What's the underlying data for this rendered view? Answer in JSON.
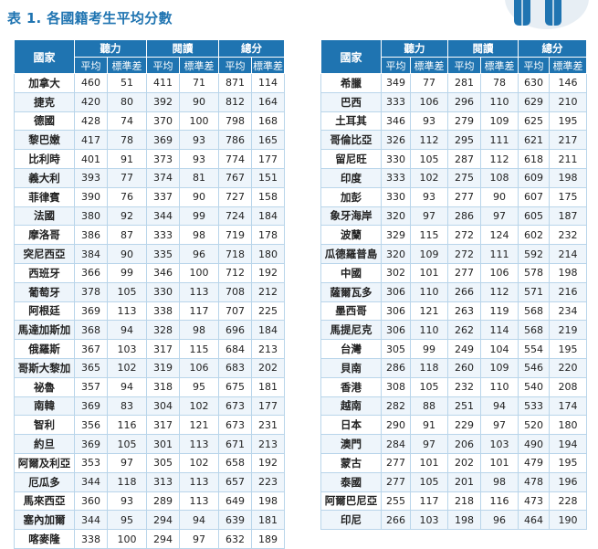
{
  "title": "表 1. 各國籍考生平均分數",
  "headers": {
    "country": "國家",
    "listening": "聽力",
    "reading": "閱讀",
    "total": "總分",
    "mean": "平均",
    "sd": "標準差"
  },
  "left_rows": [
    {
      "country": "加拿大",
      "l_mean": "460",
      "l_sd": "51",
      "r_mean": "411",
      "r_sd": "71",
      "t_mean": "871",
      "t_sd": "114"
    },
    {
      "country": "捷克",
      "l_mean": "420",
      "l_sd": "80",
      "r_mean": "392",
      "r_sd": "90",
      "t_mean": "812",
      "t_sd": "164"
    },
    {
      "country": "德國",
      "l_mean": "428",
      "l_sd": "74",
      "r_mean": "370",
      "r_sd": "100",
      "t_mean": "798",
      "t_sd": "168"
    },
    {
      "country": "黎巴嫩",
      "l_mean": "417",
      "l_sd": "78",
      "r_mean": "369",
      "r_sd": "93",
      "t_mean": "786",
      "t_sd": "165"
    },
    {
      "country": "比利時",
      "l_mean": "401",
      "l_sd": "91",
      "r_mean": "373",
      "r_sd": "93",
      "t_mean": "774",
      "t_sd": "177"
    },
    {
      "country": "義大利",
      "l_mean": "393",
      "l_sd": "77",
      "r_mean": "374",
      "r_sd": "81",
      "t_mean": "767",
      "t_sd": "151"
    },
    {
      "country": "菲律賓",
      "l_mean": "390",
      "l_sd": "76",
      "r_mean": "337",
      "r_sd": "90",
      "t_mean": "727",
      "t_sd": "158"
    },
    {
      "country": "法國",
      "l_mean": "380",
      "l_sd": "92",
      "r_mean": "344",
      "r_sd": "99",
      "t_mean": "724",
      "t_sd": "184"
    },
    {
      "country": "摩洛哥",
      "l_mean": "386",
      "l_sd": "87",
      "r_mean": "333",
      "r_sd": "98",
      "t_mean": "719",
      "t_sd": "178"
    },
    {
      "country": "突尼西亞",
      "l_mean": "384",
      "l_sd": "90",
      "r_mean": "335",
      "r_sd": "96",
      "t_mean": "718",
      "t_sd": "180"
    },
    {
      "country": "西班牙",
      "l_mean": "366",
      "l_sd": "99",
      "r_mean": "346",
      "r_sd": "100",
      "t_mean": "712",
      "t_sd": "192"
    },
    {
      "country": "葡萄牙",
      "l_mean": "378",
      "l_sd": "105",
      "r_mean": "330",
      "r_sd": "113",
      "t_mean": "708",
      "t_sd": "212"
    },
    {
      "country": "阿根廷",
      "l_mean": "369",
      "l_sd": "113",
      "r_mean": "338",
      "r_sd": "117",
      "t_mean": "707",
      "t_sd": "225"
    },
    {
      "country": "馬達加斯加",
      "l_mean": "368",
      "l_sd": "94",
      "r_mean": "328",
      "r_sd": "98",
      "t_mean": "696",
      "t_sd": "184"
    },
    {
      "country": "俄羅斯",
      "l_mean": "367",
      "l_sd": "103",
      "r_mean": "317",
      "r_sd": "115",
      "t_mean": "684",
      "t_sd": "213"
    },
    {
      "country": "哥斯大黎加",
      "l_mean": "365",
      "l_sd": "102",
      "r_mean": "319",
      "r_sd": "106",
      "t_mean": "683",
      "t_sd": "202"
    },
    {
      "country": "祕魯",
      "l_mean": "357",
      "l_sd": "94",
      "r_mean": "318",
      "r_sd": "95",
      "t_mean": "675",
      "t_sd": "181"
    },
    {
      "country": "南韓",
      "l_mean": "369",
      "l_sd": "83",
      "r_mean": "304",
      "r_sd": "102",
      "t_mean": "673",
      "t_sd": "177"
    },
    {
      "country": "智利",
      "l_mean": "356",
      "l_sd": "116",
      "r_mean": "317",
      "r_sd": "121",
      "t_mean": "673",
      "t_sd": "231"
    },
    {
      "country": "約旦",
      "l_mean": "369",
      "l_sd": "105",
      "r_mean": "301",
      "r_sd": "113",
      "t_mean": "671",
      "t_sd": "213"
    },
    {
      "country": "阿爾及利亞",
      "l_mean": "353",
      "l_sd": "97",
      "r_mean": "305",
      "r_sd": "102",
      "t_mean": "658",
      "t_sd": "192"
    },
    {
      "country": "厄瓜多",
      "l_mean": "344",
      "l_sd": "118",
      "r_mean": "313",
      "r_sd": "113",
      "t_mean": "657",
      "t_sd": "223"
    },
    {
      "country": "馬來西亞",
      "l_mean": "360",
      "l_sd": "93",
      "r_mean": "289",
      "r_sd": "113",
      "t_mean": "649",
      "t_sd": "198"
    },
    {
      "country": "塞內加爾",
      "l_mean": "344",
      "l_sd": "95",
      "r_mean": "294",
      "r_sd": "94",
      "t_mean": "639",
      "t_sd": "181"
    },
    {
      "country": "喀麥隆",
      "l_mean": "338",
      "l_sd": "100",
      "r_mean": "294",
      "r_sd": "97",
      "t_mean": "632",
      "t_sd": "189"
    }
  ],
  "right_rows": [
    {
      "country": "希臘",
      "l_mean": "349",
      "l_sd": "77",
      "r_mean": "281",
      "r_sd": "78",
      "t_mean": "630",
      "t_sd": "146"
    },
    {
      "country": "巴西",
      "l_mean": "333",
      "l_sd": "106",
      "r_mean": "296",
      "r_sd": "110",
      "t_mean": "629",
      "t_sd": "210"
    },
    {
      "country": "土耳其",
      "l_mean": "346",
      "l_sd": "93",
      "r_mean": "279",
      "r_sd": "109",
      "t_mean": "625",
      "t_sd": "195"
    },
    {
      "country": "哥倫比亞",
      "l_mean": "326",
      "l_sd": "112",
      "r_mean": "295",
      "r_sd": "111",
      "t_mean": "621",
      "t_sd": "217"
    },
    {
      "country": "留尼旺",
      "l_mean": "330",
      "l_sd": "105",
      "r_mean": "287",
      "r_sd": "112",
      "t_mean": "618",
      "t_sd": "211"
    },
    {
      "country": "印度",
      "l_mean": "333",
      "l_sd": "102",
      "r_mean": "275",
      "r_sd": "108",
      "t_mean": "609",
      "t_sd": "198"
    },
    {
      "country": "加彭",
      "l_mean": "330",
      "l_sd": "93",
      "r_mean": "277",
      "r_sd": "90",
      "t_mean": "607",
      "t_sd": "175"
    },
    {
      "country": "象牙海岸",
      "l_mean": "320",
      "l_sd": "97",
      "r_mean": "286",
      "r_sd": "97",
      "t_mean": "605",
      "t_sd": "187"
    },
    {
      "country": "波蘭",
      "l_mean": "329",
      "l_sd": "115",
      "r_mean": "272",
      "r_sd": "124",
      "t_mean": "602",
      "t_sd": "232"
    },
    {
      "country": "瓜德羅普島",
      "l_mean": "320",
      "l_sd": "109",
      "r_mean": "272",
      "r_sd": "111",
      "t_mean": "592",
      "t_sd": "214"
    },
    {
      "country": "中國",
      "l_mean": "302",
      "l_sd": "101",
      "r_mean": "277",
      "r_sd": "106",
      "t_mean": "578",
      "t_sd": "198"
    },
    {
      "country": "薩爾瓦多",
      "l_mean": "306",
      "l_sd": "110",
      "r_mean": "266",
      "r_sd": "112",
      "t_mean": "571",
      "t_sd": "216"
    },
    {
      "country": "墨西哥",
      "l_mean": "306",
      "l_sd": "121",
      "r_mean": "263",
      "r_sd": "119",
      "t_mean": "568",
      "t_sd": "234"
    },
    {
      "country": "馬提尼克",
      "l_mean": "306",
      "l_sd": "110",
      "r_mean": "262",
      "r_sd": "114",
      "t_mean": "568",
      "t_sd": "219"
    },
    {
      "country": "台灣",
      "l_mean": "305",
      "l_sd": "99",
      "r_mean": "249",
      "r_sd": "104",
      "t_mean": "554",
      "t_sd": "195"
    },
    {
      "country": "貝南",
      "l_mean": "286",
      "l_sd": "118",
      "r_mean": "260",
      "r_sd": "109",
      "t_mean": "546",
      "t_sd": "220"
    },
    {
      "country": "香港",
      "l_mean": "308",
      "l_sd": "105",
      "r_mean": "232",
      "r_sd": "110",
      "t_mean": "540",
      "t_sd": "208"
    },
    {
      "country": "越南",
      "l_mean": "282",
      "l_sd": "88",
      "r_mean": "251",
      "r_sd": "94",
      "t_mean": "533",
      "t_sd": "174"
    },
    {
      "country": "日本",
      "l_mean": "290",
      "l_sd": "91",
      "r_mean": "229",
      "r_sd": "97",
      "t_mean": "520",
      "t_sd": "180"
    },
    {
      "country": "澳門",
      "l_mean": "284",
      "l_sd": "97",
      "r_mean": "206",
      "r_sd": "103",
      "t_mean": "490",
      "t_sd": "194"
    },
    {
      "country": "蒙古",
      "l_mean": "277",
      "l_sd": "101",
      "r_mean": "202",
      "r_sd": "101",
      "t_mean": "479",
      "t_sd": "195"
    },
    {
      "country": "泰國",
      "l_mean": "277",
      "l_sd": "105",
      "r_mean": "201",
      "r_sd": "98",
      "t_mean": "478",
      "t_sd": "196"
    },
    {
      "country": "阿爾巴尼亞",
      "l_mean": "255",
      "l_sd": "117",
      "r_mean": "218",
      "r_sd": "116",
      "t_mean": "473",
      "t_sd": "228"
    },
    {
      "country": "印尼",
      "l_mean": "266",
      "l_sd": "103",
      "r_mean": "198",
      "r_sd": "96",
      "t_mean": "464",
      "t_sd": "190"
    }
  ],
  "colors": {
    "header_bg": "#1f74b1",
    "title": "#1f74b1",
    "border": "#b9d5ea",
    "stripe": "#eef5fb"
  },
  "icons": [
    "people-illustration-icon"
  ]
}
